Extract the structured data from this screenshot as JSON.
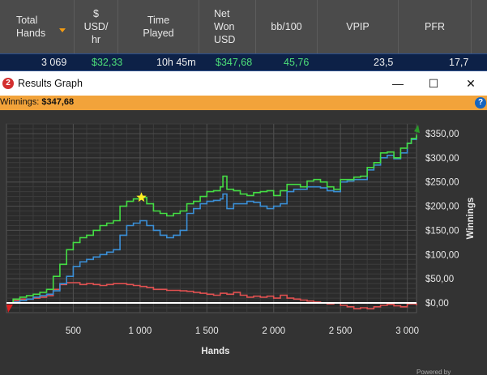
{
  "table": {
    "headers": [
      {
        "lines": [
          "Total",
          "Hands"
        ]
      },
      {
        "lines": [
          "$",
          "USD/",
          "hr"
        ]
      },
      {
        "lines": [
          "Time",
          "Played"
        ]
      },
      {
        "lines": [
          "Net",
          "Won",
          "USD"
        ]
      },
      {
        "lines": [
          "bb/100"
        ]
      },
      {
        "lines": [
          "VPIP"
        ]
      },
      {
        "lines": [
          "PFR"
        ]
      }
    ],
    "row": {
      "total_hands": "3 069",
      "usd_hr": "$32,33",
      "time_played": "10h 45m",
      "net_won": "$347,68",
      "bb100": "45,76",
      "vpip": "23,5",
      "pfr": "17,7"
    }
  },
  "window": {
    "title": "Results Graph",
    "app_icon": "2",
    "minimize_glyph": "—",
    "maximize_glyph": "☐",
    "close_glyph": "✕",
    "help_glyph": "?"
  },
  "infobar": {
    "label": "Winnings:",
    "value": "$347,68"
  },
  "footer": {
    "powered_by": "Powered by"
  },
  "colors": {
    "winnings": "#44dd44",
    "showdown": "#3b8fd6",
    "non_showdown": "#e05050",
    "zero_line": "#ffffff",
    "infobar": "#f2a33a",
    "star": "#ffee22"
  },
  "chart_data": {
    "type": "line",
    "xlabel": "Hands",
    "ylabel": "Winnings",
    "xlim": [
      0,
      3069
    ],
    "ylim": [
      -20,
      370
    ],
    "x_ticks": [
      500,
      1000,
      1500,
      2000,
      2500,
      3000
    ],
    "x_tick_labels": [
      "500",
      "1 000",
      "1 500",
      "2 000",
      "2 500",
      "3 000"
    ],
    "y_ticks": [
      0,
      50,
      100,
      150,
      200,
      250,
      300,
      350
    ],
    "y_tick_labels": [
      "$0,00",
      "$50,00",
      "$100,00",
      "$150,00",
      "$200,00",
      "$250,00",
      "$300,00",
      "$350,00"
    ],
    "grid": true,
    "series": [
      {
        "role": "winnings",
        "x": [
          0,
          50,
          100,
          150,
          200,
          250,
          300,
          350,
          400,
          450,
          500,
          550,
          600,
          650,
          700,
          750,
          800,
          850,
          900,
          950,
          1000,
          1050,
          1100,
          1150,
          1200,
          1250,
          1300,
          1350,
          1400,
          1450,
          1500,
          1550,
          1600,
          1620,
          1650,
          1700,
          1750,
          1800,
          1850,
          1900,
          1950,
          2000,
          2050,
          2100,
          2150,
          2200,
          2250,
          2300,
          2350,
          2400,
          2450,
          2500,
          2550,
          2600,
          2650,
          2700,
          2750,
          2800,
          2850,
          2900,
          2950,
          3000,
          3030,
          3069
        ],
        "y": [
          0,
          8,
          12,
          15,
          18,
          22,
          28,
          55,
          80,
          110,
          125,
          135,
          140,
          150,
          160,
          165,
          170,
          200,
          210,
          215,
          218,
          205,
          190,
          185,
          180,
          185,
          190,
          205,
          210,
          220,
          230,
          232,
          240,
          262,
          235,
          232,
          225,
          222,
          228,
          230,
          232,
          222,
          232,
          245,
          245,
          240,
          252,
          255,
          250,
          240,
          235,
          255,
          255,
          260,
          262,
          280,
          290,
          310,
          312,
          300,
          320,
          330,
          340,
          348
        ]
      },
      {
        "role": "showdown",
        "x": [
          0,
          50,
          100,
          150,
          200,
          250,
          300,
          350,
          400,
          450,
          500,
          550,
          600,
          650,
          700,
          750,
          800,
          850,
          900,
          950,
          1000,
          1050,
          1100,
          1150,
          1200,
          1250,
          1300,
          1350,
          1400,
          1450,
          1500,
          1550,
          1600,
          1620,
          1650,
          1700,
          1750,
          1800,
          1850,
          1900,
          1950,
          2000,
          2050,
          2100,
          2150,
          2200,
          2250,
          2300,
          2350,
          2400,
          2450,
          2500,
          2550,
          2600,
          2650,
          2700,
          2750,
          2800,
          2850,
          2900,
          2950,
          3000,
          3030,
          3069
        ],
        "y": [
          0,
          2,
          5,
          8,
          12,
          15,
          18,
          25,
          40,
          55,
          75,
          85,
          90,
          95,
          100,
          105,
          110,
          140,
          160,
          165,
          170,
          160,
          150,
          140,
          135,
          140,
          150,
          185,
          195,
          205,
          210,
          212,
          215,
          225,
          195,
          205,
          205,
          210,
          208,
          200,
          195,
          200,
          205,
          230,
          235,
          235,
          240,
          240,
          238,
          232,
          230,
          250,
          252,
          255,
          255,
          275,
          285,
          300,
          305,
          298,
          310,
          330,
          338,
          345
        ]
      },
      {
        "role": "non_showdown",
        "x": [
          0,
          50,
          100,
          150,
          200,
          250,
          300,
          350,
          400,
          450,
          500,
          550,
          600,
          650,
          700,
          750,
          800,
          850,
          900,
          950,
          1000,
          1050,
          1100,
          1150,
          1200,
          1250,
          1300,
          1350,
          1400,
          1450,
          1500,
          1550,
          1600,
          1650,
          1700,
          1750,
          1800,
          1850,
          1900,
          1950,
          2000,
          2050,
          2100,
          2150,
          2200,
          2250,
          2300,
          2350,
          2400,
          2450,
          2500,
          2550,
          2600,
          2650,
          2700,
          2750,
          2800,
          2850,
          2900,
          2950,
          3000,
          3069
        ],
        "y": [
          0,
          5,
          8,
          8,
          10,
          12,
          15,
          28,
          38,
          42,
          42,
          38,
          40,
          38,
          36,
          38,
          40,
          40,
          38,
          36,
          34,
          32,
          28,
          28,
          26,
          26,
          25,
          24,
          22,
          20,
          18,
          16,
          20,
          18,
          22,
          16,
          12,
          14,
          12,
          14,
          10,
          16,
          10,
          8,
          6,
          4,
          2,
          0,
          -2,
          0,
          -5,
          -8,
          -12,
          -10,
          -12,
          -8,
          -5,
          -3,
          -6,
          -8,
          -2,
          -5
        ]
      }
    ],
    "marker": {
      "shape": "star",
      "x": 1010,
      "y": 218
    }
  }
}
